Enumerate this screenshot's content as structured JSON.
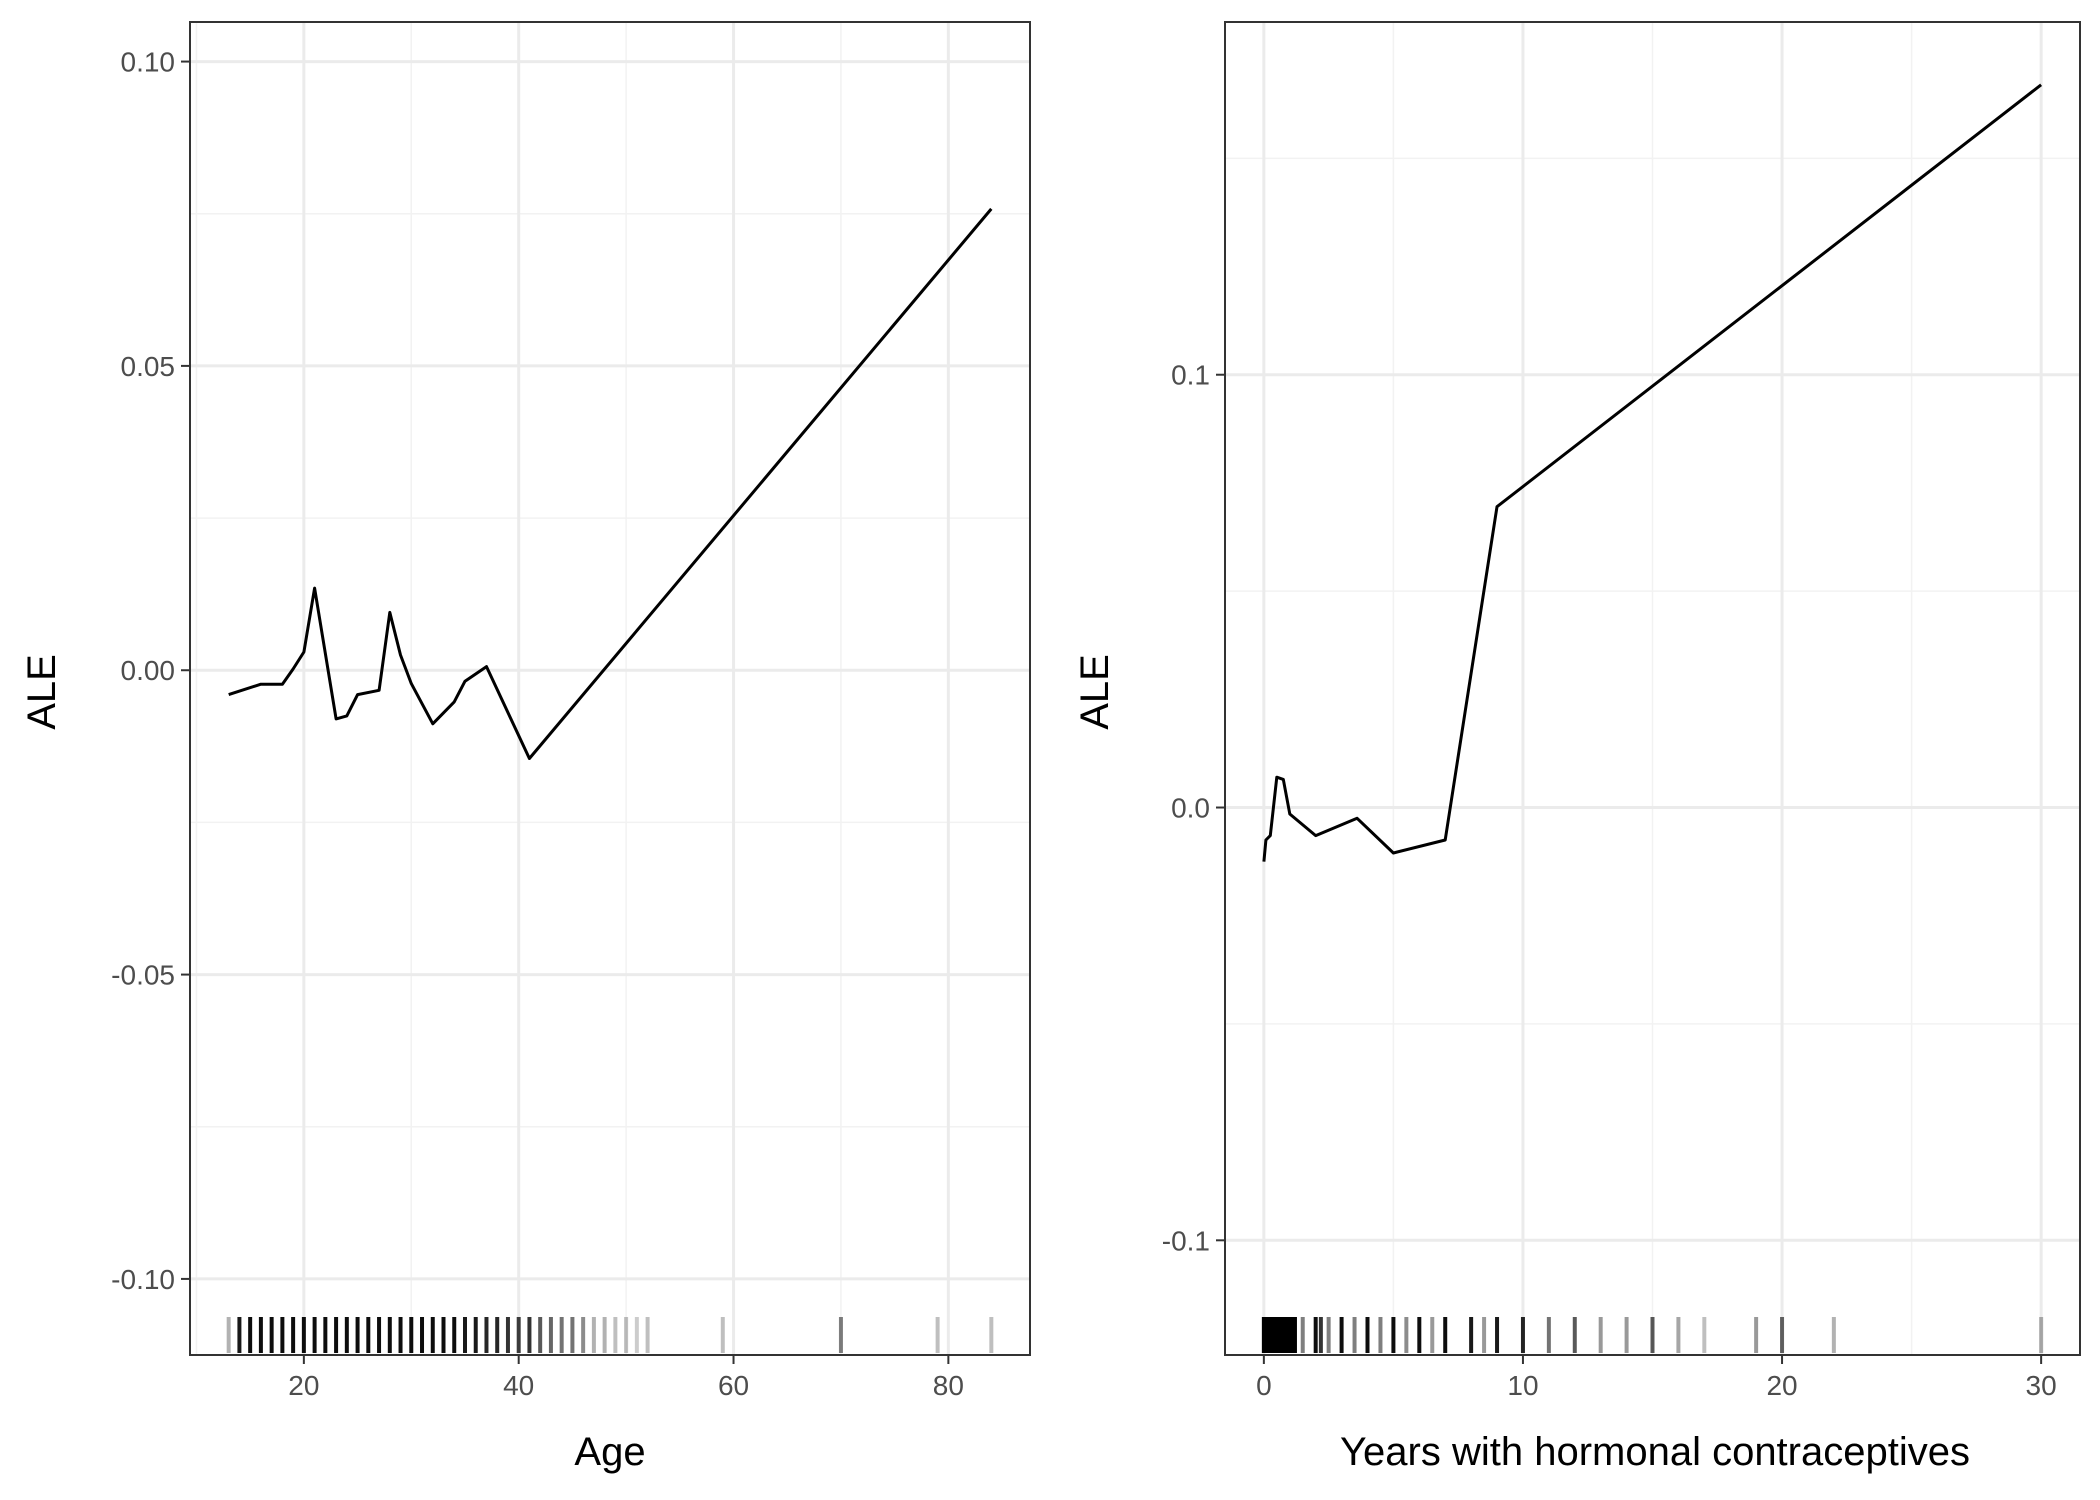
{
  "colors": {
    "background": "#ffffff",
    "panel_border": "#333333",
    "grid_major": "#ebebeb",
    "grid_minor": "#f2f2f2",
    "line": "#000000",
    "rug": "#000000"
  },
  "chart_data": [
    {
      "type": "line",
      "xlabel": "Age",
      "ylabel": "ALE",
      "xlim": [
        9.4,
        87.6
      ],
      "ylim": [
        -0.1125,
        0.1065
      ],
      "xticks": [
        20,
        40,
        60,
        80
      ],
      "xtick_labels": [
        "20",
        "40",
        "60",
        "80"
      ],
      "yticks": [
        -0.1,
        -0.05,
        0.0,
        0.05,
        0.1
      ],
      "ytick_labels": [
        "-0.10",
        "-0.05",
        "0.00",
        "0.05",
        "0.10"
      ],
      "grid": true,
      "x": [
        13,
        16,
        18,
        19,
        20,
        21,
        23,
        24,
        25,
        27,
        28,
        29,
        30,
        32,
        34,
        35,
        37,
        41,
        84
      ],
      "y": [
        -0.004,
        -0.0023,
        -0.0023,
        0.0002,
        0.003,
        0.0135,
        -0.008,
        -0.0075,
        -0.004,
        -0.0033,
        0.0095,
        0.0025,
        -0.0022,
        -0.0088,
        -0.0052,
        -0.0018,
        0.0006,
        -0.0145,
        0.0758
      ],
      "rug": [
        {
          "x": 13,
          "opacity": 0.3
        },
        {
          "x": 14,
          "opacity": 0.9
        },
        {
          "x": 15,
          "opacity": 0.95
        },
        {
          "x": 16,
          "opacity": 0.95
        },
        {
          "x": 17,
          "opacity": 0.95
        },
        {
          "x": 18,
          "opacity": 0.95
        },
        {
          "x": 19,
          "opacity": 0.95
        },
        {
          "x": 20,
          "opacity": 0.95
        },
        {
          "x": 21,
          "opacity": 0.95
        },
        {
          "x": 22,
          "opacity": 0.95
        },
        {
          "x": 23,
          "opacity": 0.95
        },
        {
          "x": 24,
          "opacity": 0.95
        },
        {
          "x": 25,
          "opacity": 0.95
        },
        {
          "x": 26,
          "opacity": 0.95
        },
        {
          "x": 27,
          "opacity": 0.95
        },
        {
          "x": 28,
          "opacity": 0.95
        },
        {
          "x": 29,
          "opacity": 0.95
        },
        {
          "x": 30,
          "opacity": 0.95
        },
        {
          "x": 31,
          "opacity": 0.95
        },
        {
          "x": 32,
          "opacity": 0.95
        },
        {
          "x": 33,
          "opacity": 0.95
        },
        {
          "x": 34,
          "opacity": 0.95
        },
        {
          "x": 35,
          "opacity": 0.9
        },
        {
          "x": 36,
          "opacity": 0.9
        },
        {
          "x": 37,
          "opacity": 0.85
        },
        {
          "x": 38,
          "opacity": 0.85
        },
        {
          "x": 39,
          "opacity": 0.8
        },
        {
          "x": 40,
          "opacity": 0.75
        },
        {
          "x": 41,
          "opacity": 0.8
        },
        {
          "x": 42,
          "opacity": 0.65
        },
        {
          "x": 43,
          "opacity": 0.6
        },
        {
          "x": 44,
          "opacity": 0.55
        },
        {
          "x": 45,
          "opacity": 0.55
        },
        {
          "x": 46,
          "opacity": 0.45
        },
        {
          "x": 47,
          "opacity": 0.3
        },
        {
          "x": 48,
          "opacity": 0.3
        },
        {
          "x": 49,
          "opacity": 0.25
        },
        {
          "x": 50,
          "opacity": 0.25
        },
        {
          "x": 51,
          "opacity": 0.2
        },
        {
          "x": 52,
          "opacity": 0.25
        },
        {
          "x": 59,
          "opacity": 0.25
        },
        {
          "x": 70,
          "opacity": 0.5
        },
        {
          "x": 79,
          "opacity": 0.25
        },
        {
          "x": 84,
          "opacity": 0.25
        }
      ]
    },
    {
      "type": "line",
      "xlabel": "Years with hormonal contraceptives",
      "ylabel": "ALE",
      "xlim": [
        -1.5,
        31.5
      ],
      "ylim": [
        -0.1265,
        0.1815
      ],
      "xticks": [
        0,
        10,
        20,
        30
      ],
      "xtick_labels": [
        "0",
        "10",
        "20",
        "30"
      ],
      "yticks": [
        -0.1,
        0.0,
        0.1
      ],
      "ytick_labels": [
        "-0.1",
        "0.0",
        "0.1"
      ],
      "grid": true,
      "x": [
        0,
        0.08,
        0.25,
        0.5,
        0.75,
        1,
        2,
        3.6,
        5,
        7,
        9,
        30
      ],
      "y": [
        -0.0125,
        -0.0075,
        -0.0065,
        0.007,
        0.0065,
        -0.0015,
        -0.0065,
        -0.0025,
        -0.0105,
        -0.0075,
        0.0695,
        0.167
      ],
      "rug": [
        {
          "x": 0,
          "opacity": 1
        },
        {
          "x": 0.1,
          "opacity": 1
        },
        {
          "x": 0.2,
          "opacity": 1
        },
        {
          "x": 0.3,
          "opacity": 1
        },
        {
          "x": 0.4,
          "opacity": 1
        },
        {
          "x": 0.5,
          "opacity": 1
        },
        {
          "x": 0.6,
          "opacity": 1
        },
        {
          "x": 0.7,
          "opacity": 1
        },
        {
          "x": 0.8,
          "opacity": 1
        },
        {
          "x": 0.9,
          "opacity": 1
        },
        {
          "x": 1,
          "opacity": 1
        },
        {
          "x": 1.1,
          "opacity": 1
        },
        {
          "x": 1.2,
          "opacity": 1
        },
        {
          "x": 1.5,
          "opacity": 0.5
        },
        {
          "x": 2,
          "opacity": 0.95
        },
        {
          "x": 2.2,
          "opacity": 0.8
        },
        {
          "x": 2.5,
          "opacity": 0.5
        },
        {
          "x": 3,
          "opacity": 0.95
        },
        {
          "x": 3.5,
          "opacity": 0.5
        },
        {
          "x": 4,
          "opacity": 0.95
        },
        {
          "x": 4.5,
          "opacity": 0.5
        },
        {
          "x": 5,
          "opacity": 0.95
        },
        {
          "x": 5.5,
          "opacity": 0.45
        },
        {
          "x": 6,
          "opacity": 0.95
        },
        {
          "x": 6.5,
          "opacity": 0.4
        },
        {
          "x": 7,
          "opacity": 0.95
        },
        {
          "x": 8,
          "opacity": 0.9
        },
        {
          "x": 8.5,
          "opacity": 0.4
        },
        {
          "x": 9,
          "opacity": 0.9
        },
        {
          "x": 10,
          "opacity": 0.85
        },
        {
          "x": 11,
          "opacity": 0.55
        },
        {
          "x": 12,
          "opacity": 0.65
        },
        {
          "x": 13,
          "opacity": 0.4
        },
        {
          "x": 14,
          "opacity": 0.4
        },
        {
          "x": 15,
          "opacity": 0.65
        },
        {
          "x": 16,
          "opacity": 0.35
        },
        {
          "x": 17,
          "opacity": 0.25
        },
        {
          "x": 19,
          "opacity": 0.4
        },
        {
          "x": 20,
          "opacity": 0.6
        },
        {
          "x": 22,
          "opacity": 0.3
        },
        {
          "x": 30,
          "opacity": 0.3
        }
      ]
    }
  ]
}
